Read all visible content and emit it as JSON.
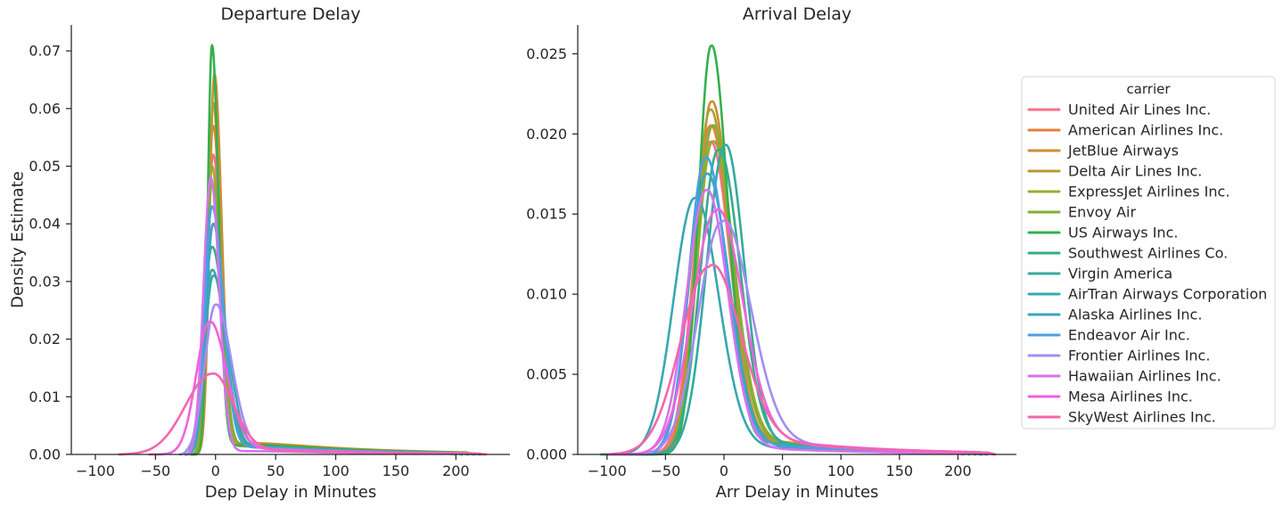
{
  "chart_data": {
    "legend": {
      "title": "carrier",
      "placement": "right",
      "entries": [
        {
          "name": "United Air Lines Inc.",
          "color": "#f77189"
        },
        {
          "name": "American Airlines Inc.",
          "color": "#e5803a"
        },
        {
          "name": "JetBlue Airways",
          "color": "#ca8e32"
        },
        {
          "name": "Delta Air Lines Inc.",
          "color": "#b59c32"
        },
        {
          "name": "ExpressJet Airlines Inc.",
          "color": "#9ea932"
        },
        {
          "name": "Envoy Air",
          "color": "#7db232"
        },
        {
          "name": "US Airways Inc.",
          "color": "#33b04f"
        },
        {
          "name": "Southwest Airlines Co.",
          "color": "#35ac8b"
        },
        {
          "name": "Virgin America",
          "color": "#36a9a0"
        },
        {
          "name": "AirTran Airways Corporation",
          "color": "#38a7b1"
        },
        {
          "name": "Alaska Airlines Inc.",
          "color": "#3aa5c2"
        },
        {
          "name": "Endeavor Air Inc.",
          "color": "#4c9fe4"
        },
        {
          "name": "Frontier Airlines Inc.",
          "color": "#a48cf4"
        },
        {
          "name": "Hawaiian Airlines Inc.",
          "color": "#d673ee"
        },
        {
          "name": "Mesa Airlines Inc.",
          "color": "#f062dd"
        },
        {
          "name": "SkyWest Airlines Inc.",
          "color": "#f565ae"
        }
      ]
    },
    "panels": [
      {
        "type": "line",
        "title": "Departure Delay",
        "xlabel": "Dep Delay in Minutes",
        "ylabel": "Density Estimate",
        "xlim": [
          -120,
          245
        ],
        "ylim": [
          0,
          0.0745
        ],
        "xticks": [
          -100,
          -50,
          0,
          50,
          100,
          150,
          200
        ],
        "yticks": [
          0.0,
          0.01,
          0.02,
          0.03,
          0.04,
          0.05,
          0.06,
          0.07
        ],
        "ytick_labels": [
          "0.00",
          "0.01",
          "0.02",
          "0.03",
          "0.04",
          "0.05",
          "0.06",
          "0.07"
        ],
        "grid": false,
        "series": [
          {
            "peak": 0.052,
            "mode": -2,
            "sl": 5,
            "sr": 7,
            "tail": 0.045,
            "xmin": -20,
            "xmax": 210
          },
          {
            "peak": 0.057,
            "mode": -2,
            "sl": 5,
            "sr": 6.5,
            "tail": 0.05,
            "xmin": -20,
            "xmax": 210
          },
          {
            "peak": 0.066,
            "mode": -1,
            "sl": 4,
            "sr": 6,
            "tail": 0.05,
            "xmin": -20,
            "xmax": 215
          },
          {
            "peak": 0.061,
            "mode": -2,
            "sl": 4.5,
            "sr": 6,
            "tail": 0.04,
            "xmin": -20,
            "xmax": 205
          },
          {
            "peak": 0.05,
            "mode": -3,
            "sl": 5,
            "sr": 7,
            "tail": 0.05,
            "xmin": -20,
            "xmax": 210
          },
          {
            "peak": 0.047,
            "mode": -3,
            "sl": 5,
            "sr": 7.5,
            "tail": 0.05,
            "xmin": -20,
            "xmax": 210
          },
          {
            "peak": 0.071,
            "mode": -3,
            "sl": 3.5,
            "sr": 5.5,
            "tail": 0.04,
            "xmin": -20,
            "xmax": 205
          },
          {
            "peak": 0.036,
            "mode": -3,
            "sl": 7,
            "sr": 10,
            "tail": 0.06,
            "xmin": -25,
            "xmax": 215
          },
          {
            "peak": 0.032,
            "mode": -3,
            "sl": 7,
            "sr": 11,
            "tail": 0.06,
            "xmin": -25,
            "xmax": 220
          },
          {
            "peak": 0.031,
            "mode": -2,
            "sl": 7,
            "sr": 12,
            "tail": 0.06,
            "xmin": -25,
            "xmax": 220
          },
          {
            "peak": 0.04,
            "mode": -2,
            "sl": 6,
            "sr": 9,
            "tail": 0.05,
            "xmin": -25,
            "xmax": 215
          },
          {
            "peak": 0.043,
            "mode": -3,
            "sl": 6,
            "sr": 9,
            "tail": 0.05,
            "xmin": -25,
            "xmax": 215
          },
          {
            "peak": 0.026,
            "mode": 0,
            "sl": 9,
            "sr": 13,
            "tail": 0.06,
            "xmin": -30,
            "xmax": 220
          },
          {
            "peak": 0.048,
            "mode": -4,
            "sl": 6,
            "sr": 7,
            "tail": 0.02,
            "xmin": -25,
            "xmax": 200
          },
          {
            "peak": 0.023,
            "mode": -5,
            "sl": 11,
            "sr": 14,
            "tail": 0.07,
            "xmin": -55,
            "xmax": 222
          },
          {
            "peak": 0.014,
            "mode": -3,
            "sl": 22,
            "sr": 17,
            "tail": 0.09,
            "xmin": -80,
            "xmax": 225
          }
        ]
      },
      {
        "type": "line",
        "title": "Arrival Delay",
        "xlabel": "Arr Delay in Minutes",
        "ylabel": "",
        "xlim": [
          -125,
          250
        ],
        "ylim": [
          0,
          0.0268
        ],
        "xticks": [
          -100,
          -50,
          0,
          50,
          100,
          150,
          200
        ],
        "yticks": [
          0.0,
          0.005,
          0.01,
          0.015,
          0.02,
          0.025
        ],
        "ytick_labels": [
          "0.000",
          "0.005",
          "0.010",
          "0.015",
          "0.020",
          "0.025"
        ],
        "grid": false,
        "series": [
          {
            "peak": 0.0195,
            "mode": -12,
            "sl": 14,
            "sr": 17,
            "tail": 0.06,
            "xmin": -90,
            "xmax": 215
          },
          {
            "peak": 0.0205,
            "mode": -12,
            "sl": 13,
            "sr": 17,
            "tail": 0.06,
            "xmin": -85,
            "xmax": 215
          },
          {
            "peak": 0.022,
            "mode": -11,
            "sl": 12,
            "sr": 16,
            "tail": 0.07,
            "xmin": -80,
            "xmax": 220
          },
          {
            "peak": 0.0215,
            "mode": -12,
            "sl": 12,
            "sr": 16,
            "tail": 0.06,
            "xmin": -80,
            "xmax": 215
          },
          {
            "peak": 0.0195,
            "mode": -10,
            "sl": 13,
            "sr": 18,
            "tail": 0.07,
            "xmin": -85,
            "xmax": 220
          },
          {
            "peak": 0.0205,
            "mode": -10,
            "sl": 13,
            "sr": 17,
            "tail": 0.07,
            "xmin": -85,
            "xmax": 220
          },
          {
            "peak": 0.0255,
            "mode": -11,
            "sl": 11,
            "sr": 14,
            "tail": 0.05,
            "xmin": -75,
            "xmax": 210
          },
          {
            "peak": 0.019,
            "mode": -5,
            "sl": 15,
            "sr": 18,
            "tail": 0.06,
            "xmin": -105,
            "xmax": 225
          },
          {
            "peak": 0.0193,
            "mode": 1,
            "sl": 16,
            "sr": 16,
            "tail": 0.05,
            "xmin": -100,
            "xmax": 220
          },
          {
            "peak": 0.016,
            "mode": -25,
            "sl": 18,
            "sr": 20,
            "tail": 0.05,
            "xmin": -105,
            "xmax": 225
          },
          {
            "peak": 0.0175,
            "mode": -15,
            "sl": 15,
            "sr": 19,
            "tail": 0.05,
            "xmin": -100,
            "xmax": 220
          },
          {
            "peak": 0.0185,
            "mode": -16,
            "sl": 14,
            "sr": 18,
            "tail": 0.06,
            "xmin": -95,
            "xmax": 225
          },
          {
            "peak": 0.0145,
            "mode": -2,
            "sl": 20,
            "sr": 24,
            "tail": 0.09,
            "xmin": -100,
            "xmax": 230
          },
          {
            "peak": 0.0165,
            "mode": -15,
            "sl": 17,
            "sr": 18,
            "tail": 0.04,
            "xmin": -95,
            "xmax": 205
          },
          {
            "peak": 0.0152,
            "mode": -7,
            "sl": 20,
            "sr": 22,
            "tail": 0.1,
            "xmin": -100,
            "xmax": 225
          },
          {
            "peak": 0.0117,
            "mode": -13,
            "sl": 24,
            "sr": 26,
            "tail": 0.12,
            "xmin": -100,
            "xmax": 232
          }
        ]
      }
    ]
  }
}
